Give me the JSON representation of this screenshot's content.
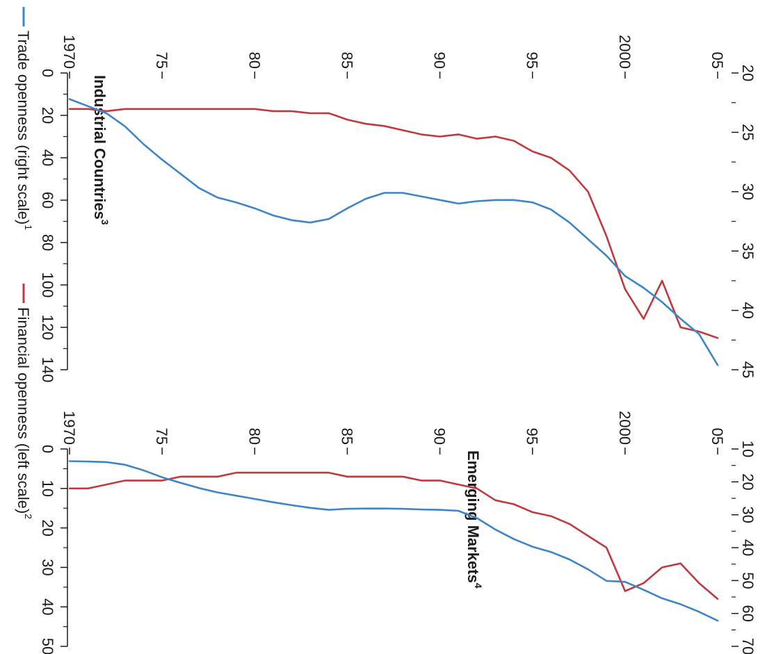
{
  "legend": {
    "trade": {
      "label": "Trade openness (right scale)",
      "note": "1",
      "color": "#3d85c8"
    },
    "financial": {
      "label": "Financial openness (left scale)",
      "note": "2",
      "color": "#c0393f"
    }
  },
  "chart_data": [
    {
      "type": "line",
      "title": "Industrial Countries",
      "title_note": "3",
      "x": [
        1970,
        1971,
        1972,
        1973,
        1974,
        1975,
        1976,
        1977,
        1978,
        1979,
        1980,
        1981,
        1982,
        1983,
        1984,
        1985,
        1986,
        1987,
        1988,
        1989,
        1990,
        1991,
        1992,
        1993,
        1994,
        1995,
        1996,
        1997,
        1998,
        1999,
        2000,
        2001,
        2002,
        2003,
        2004,
        2005
      ],
      "x_tick_values": [
        1970,
        1975,
        1980,
        1985,
        1990,
        1995,
        2000,
        2005
      ],
      "x_tick_labels": [
        "1970",
        "75",
        "80",
        "85",
        "90",
        "95",
        "2000",
        "05"
      ],
      "xlim": [
        1970,
        2005
      ],
      "left_axis": {
        "ylim": [
          0,
          140
        ],
        "ticks": [
          0,
          20,
          40,
          60,
          80,
          100,
          120,
          140
        ],
        "minor_ticks": [
          10,
          30,
          50,
          70,
          90,
          110,
          130
        ]
      },
      "right_axis": {
        "ylim": [
          20,
          45
        ],
        "ticks": [
          20,
          25,
          30,
          35,
          40,
          45
        ],
        "minor_ticks": [
          22.5,
          27.5,
          32.5,
          37.5,
          42.5
        ]
      },
      "series": [
        {
          "key": "financial",
          "axis": "left",
          "values": [
            17,
            17,
            18,
            17,
            17,
            17,
            17,
            17,
            17,
            17,
            17,
            18,
            18,
            19,
            19,
            22,
            24,
            25,
            27,
            29,
            30,
            29,
            31,
            30,
            32,
            37,
            40,
            46,
            56,
            77,
            102,
            116,
            98,
            120,
            122,
            125
          ]
        },
        {
          "key": "trade",
          "axis": "right",
          "values": [
            22.2,
            22.8,
            23.4,
            24.5,
            26.0,
            27.3,
            28.5,
            29.7,
            30.5,
            30.9,
            31.4,
            32.0,
            32.4,
            32.6,
            32.3,
            31.4,
            30.6,
            30.1,
            30.1,
            30.4,
            30.7,
            31.0,
            30.8,
            30.7,
            30.7,
            30.9,
            31.5,
            32.6,
            34.0,
            35.4,
            37.1,
            38.1,
            39.3,
            40.7,
            42.0,
            44.6
          ]
        }
      ]
    },
    {
      "type": "line",
      "title": "Emerging Markets",
      "title_note": "4",
      "x": [
        1970,
        1971,
        1972,
        1973,
        1974,
        1975,
        1976,
        1977,
        1978,
        1979,
        1980,
        1981,
        1982,
        1983,
        1984,
        1985,
        1986,
        1987,
        1988,
        1989,
        1990,
        1991,
        1992,
        1993,
        1994,
        1995,
        1996,
        1997,
        1998,
        1999,
        2000,
        2001,
        2002,
        2003,
        2004,
        2005
      ],
      "x_tick_values": [
        1970,
        1975,
        1980,
        1985,
        1990,
        1995,
        2000,
        2005
      ],
      "x_tick_labels": [
        "1970",
        "75",
        "80",
        "85",
        "90",
        "95",
        "2000",
        "05"
      ],
      "xlim": [
        1970,
        2005
      ],
      "left_axis": {
        "ylim": [
          0,
          50
        ],
        "ticks": [
          0,
          10,
          20,
          30,
          40,
          50
        ],
        "minor_ticks": [
          5,
          15,
          25,
          35,
          45
        ]
      },
      "right_axis": {
        "ylim": [
          10,
          70
        ],
        "ticks": [
          10,
          20,
          30,
          40,
          50,
          60,
          70
        ],
        "minor_ticks": [
          15,
          25,
          35,
          45,
          55,
          65
        ]
      },
      "series": [
        {
          "key": "financial",
          "axis": "left",
          "values": [
            10,
            10,
            9,
            8,
            8,
            8,
            7,
            7,
            7,
            6,
            6,
            6,
            6,
            6,
            6,
            7,
            7,
            7,
            7,
            8,
            8,
            9,
            10,
            13,
            14,
            16,
            17,
            19,
            22,
            25,
            36,
            34,
            30,
            29,
            34,
            38
          ]
        },
        {
          "key": "trade",
          "axis": "right",
          "values": [
            13.7,
            13.8,
            14.0,
            14.8,
            16.5,
            18.6,
            20.3,
            21.9,
            23.2,
            24.2,
            25.2,
            26.2,
            27.1,
            27.9,
            28.5,
            28.2,
            28.1,
            28.1,
            28.2,
            28.4,
            28.5,
            28.8,
            31.0,
            34.5,
            37.4,
            39.7,
            41.3,
            43.6,
            46.6,
            50.1,
            50.4,
            52.8,
            55.4,
            57.2,
            59.5,
            62.2
          ]
        }
      ]
    }
  ]
}
